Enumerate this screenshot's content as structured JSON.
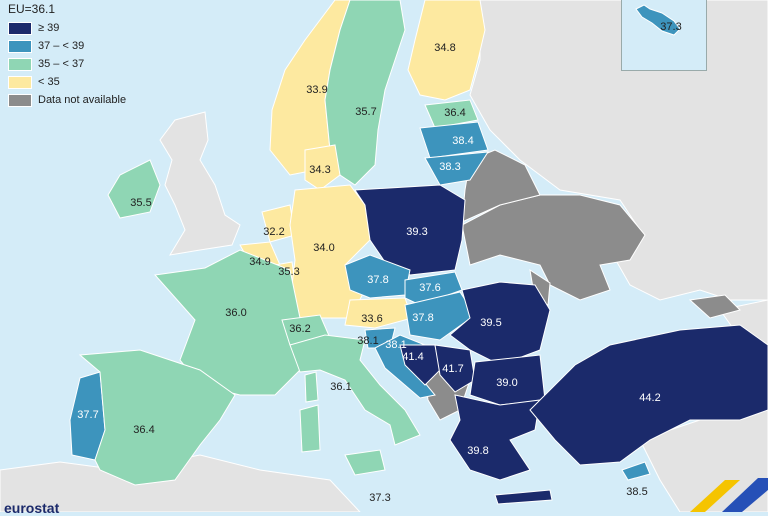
{
  "legend": {
    "title": "EU=36.1",
    "items": [
      {
        "label": "≥ 39",
        "color": "#1b2a6b"
      },
      {
        "label": "37 – < 39",
        "color": "#3d94bd"
      },
      {
        "label": "35 – < 37",
        "color": "#8fd6b4"
      },
      {
        "label": "< 35",
        "color": "#fde9a0"
      },
      {
        "label": "Data not available",
        "color": "#8c8c8c"
      }
    ]
  },
  "colors": {
    "sea": "#d4ecf8",
    "non_covered": "#e3e3e3",
    "no_data": "#8c8c8c",
    "border": "#ffffff"
  },
  "inset": {
    "country": "Malta",
    "value": "37.3"
  },
  "countries": [
    {
      "name": "Norway",
      "value": "33.9"
    },
    {
      "name": "Sweden",
      "value": "35.7"
    },
    {
      "name": "Finland",
      "value": "34.8"
    },
    {
      "name": "Estonia",
      "value": "36.4"
    },
    {
      "name": "Latvia",
      "value": "38.4"
    },
    {
      "name": "Lithuania",
      "value": "38.3"
    },
    {
      "name": "Denmark",
      "value": "34.3"
    },
    {
      "name": "Ireland",
      "value": "35.5"
    },
    {
      "name": "Netherlands",
      "value": "32.2"
    },
    {
      "name": "Belgium",
      "value": "34.9"
    },
    {
      "name": "Luxembourg",
      "value": "35.3"
    },
    {
      "name": "Germany",
      "value": "34.0"
    },
    {
      "name": "Poland",
      "value": "39.3"
    },
    {
      "name": "Czechia",
      "value": "37.8"
    },
    {
      "name": "Slovakia",
      "value": "37.6"
    },
    {
      "name": "Austria",
      "value": "33.6"
    },
    {
      "name": "Hungary",
      "value": "37.8"
    },
    {
      "name": "Romania",
      "value": "39.5"
    },
    {
      "name": "France",
      "value": "36.0"
    },
    {
      "name": "Switzerland",
      "value": "36.2"
    },
    {
      "name": "Slovenia",
      "value": "38.1"
    },
    {
      "name": "Croatia",
      "value": "38.1"
    },
    {
      "name": "Bosnia and Herzegovina",
      "value": "41.4"
    },
    {
      "name": "Serbia",
      "value": "41.7"
    },
    {
      "name": "Bulgaria",
      "value": "39.0"
    },
    {
      "name": "Italy",
      "value": "36.1"
    },
    {
      "name": "Portugal",
      "value": "37.7"
    },
    {
      "name": "Spain",
      "value": "36.4"
    },
    {
      "name": "Greece",
      "value": "39.8"
    },
    {
      "name": "Turkey",
      "value": "44.2"
    },
    {
      "name": "Cyprus",
      "value": "38.5"
    },
    {
      "name": "Malta",
      "value": "37.3"
    }
  ],
  "logo": "eurostat"
}
